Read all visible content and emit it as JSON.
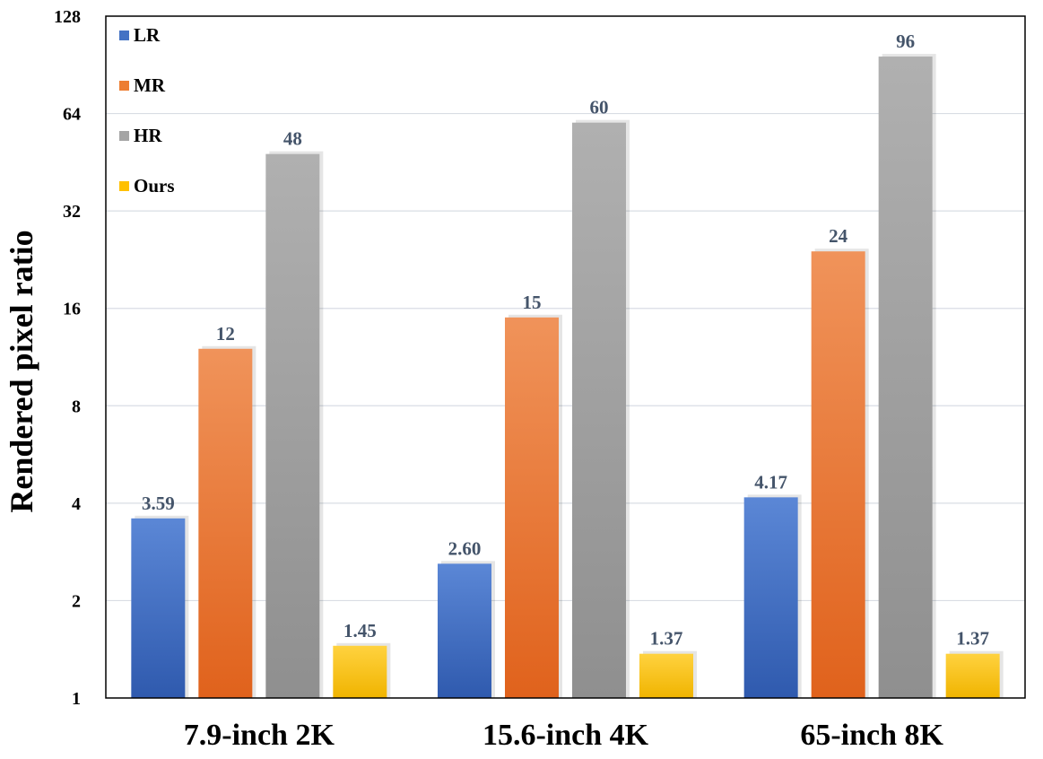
{
  "chart_data": {
    "type": "bar",
    "title": "",
    "xlabel": "",
    "ylabel": "Rendered pixel ratio",
    "yscale": "log2",
    "ylim": [
      1,
      128
    ],
    "yticks": [
      1,
      2,
      4,
      8,
      16,
      32,
      64,
      128
    ],
    "grid": true,
    "legend_position": "top-left",
    "categories": [
      "7.9-inch 2K",
      "15.6-inch 4K",
      "65-inch 8K"
    ],
    "series": [
      {
        "name": "LR",
        "color": "#4472c4",
        "color_light": "#5b87d6",
        "color_dark": "#2f5aae",
        "values": [
          3.59,
          2.6,
          4.17
        ],
        "labels": [
          "3.59",
          "2.60",
          "4.17"
        ]
      },
      {
        "name": "MR",
        "color": "#ed7d31",
        "color_light": "#f0935a",
        "color_dark": "#e0621c",
        "values": [
          12,
          15,
          24
        ],
        "labels": [
          "12",
          "15",
          "24"
        ]
      },
      {
        "name": "HR",
        "color": "#a5a5a5",
        "color_light": "#b0b0b0",
        "color_dark": "#8f8f8f",
        "values": [
          48,
          60,
          96
        ],
        "labels": [
          "48",
          "60",
          "96"
        ]
      },
      {
        "name": "Ours",
        "color": "#ffc000",
        "color_light": "#ffd23f",
        "color_dark": "#f0b400",
        "values": [
          1.45,
          1.37,
          1.37
        ],
        "labels": [
          "1.45",
          "1.37",
          "1.37"
        ]
      }
    ]
  }
}
